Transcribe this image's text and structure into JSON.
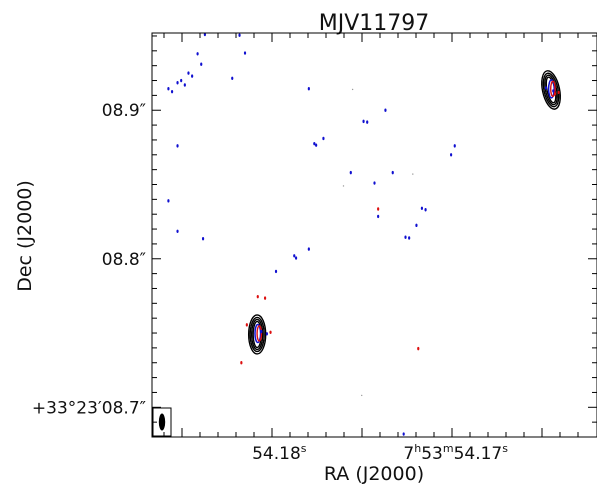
{
  "chart_data": {
    "type": "scatter",
    "title": "MJV11797",
    "xlabel": "RA (J2000)",
    "ylabel": "Dec (J2000)",
    "x_ticks": [
      {
        "label": "54.18",
        "unit": "s",
        "value": 54.18
      },
      {
        "label": "7h53m54.17",
        "unit": "s",
        "value": 54.17
      }
    ],
    "x_tick_parts": {
      "h": "7",
      "h_unit": "h",
      "m": "53",
      "m_unit": "m",
      "s": "54.17",
      "s_unit": "s"
    },
    "y_ticks": [
      {
        "label": "08.9″",
        "value": 8.9
      },
      {
        "label": "08.8″",
        "value": 8.8
      },
      {
        "label": "+33°23′08.7″",
        "value": 8.7
      }
    ],
    "xlim": [
      54.1872,
      54.1628
    ],
    "ylim": [
      8.68,
      8.952
    ],
    "grid": false,
    "beam": "bottom-left",
    "colors": {
      "contour": "#000000",
      "blue": "#1010d0",
      "red": "#dd1010",
      "frame": "#000000"
    },
    "sources": [
      {
        "ra": 54.1814,
        "dec": 8.7497
      },
      {
        "ra": 54.1653,
        "dec": 8.9144
      }
    ],
    "series": [
      {
        "color": "blue",
        "points": [
          [
            54.1863,
            8.9145
          ],
          [
            54.1861,
            8.9125
          ],
          [
            54.1858,
            8.9185
          ],
          [
            54.1856,
            8.92
          ],
          [
            54.1854,
            8.917
          ],
          [
            54.1852,
            8.925
          ],
          [
            54.185,
            8.923
          ],
          [
            54.1847,
            8.938
          ],
          [
            54.1845,
            8.931
          ],
          [
            54.1843,
            8.951
          ],
          [
            54.1828,
            8.9215
          ],
          [
            54.1824,
            8.9505
          ],
          [
            54.1821,
            8.9385
          ],
          [
            54.1863,
            8.839
          ],
          [
            54.1858,
            8.876
          ],
          [
            54.1858,
            8.8185
          ],
          [
            54.1844,
            8.8135
          ],
          [
            54.1804,
            8.7915
          ],
          [
            54.1794,
            8.802
          ],
          [
            54.1793,
            8.8005
          ],
          [
            54.1786,
            8.8065
          ],
          [
            54.1786,
            8.9145
          ],
          [
            54.1783,
            8.8775
          ],
          [
            54.1782,
            8.8765
          ],
          [
            54.1778,
            8.881
          ],
          [
            54.1763,
            8.858
          ],
          [
            54.1756,
            8.8925
          ],
          [
            54.1754,
            8.892
          ],
          [
            54.175,
            8.851
          ],
          [
            54.1748,
            8.8285
          ],
          [
            54.1744,
            8.9
          ],
          [
            54.174,
            8.858
          ],
          [
            54.1733,
            8.8145
          ],
          [
            54.1731,
            8.814
          ],
          [
            54.1727,
            8.8225
          ],
          [
            54.1724,
            8.834
          ],
          [
            54.1722,
            8.833
          ],
          [
            54.1708,
            8.87
          ],
          [
            54.1706,
            8.876
          ],
          [
            54.1734,
            8.682
          ],
          [
            54.1812,
            8.751
          ],
          [
            54.1809,
            8.7495
          ],
          [
            54.1656,
            8.915
          ],
          [
            54.1652,
            8.913
          ]
        ]
      },
      {
        "color": "red",
        "points": [
          [
            54.1814,
            8.7745
          ],
          [
            54.181,
            8.7735
          ],
          [
            54.182,
            8.7555
          ],
          [
            54.1823,
            8.73
          ],
          [
            54.1807,
            8.7505
          ],
          [
            54.1748,
            8.8335
          ],
          [
            54.1726,
            8.7395
          ],
          [
            54.1649,
            8.912
          ],
          [
            54.1651,
            8.911
          ]
        ]
      },
      {
        "color": "gray",
        "points": [
          [
            54.1767,
            8.849
          ],
          [
            54.1729,
            8.857
          ],
          [
            54.1762,
            8.914
          ],
          [
            54.1757,
            8.708
          ]
        ]
      }
    ]
  }
}
